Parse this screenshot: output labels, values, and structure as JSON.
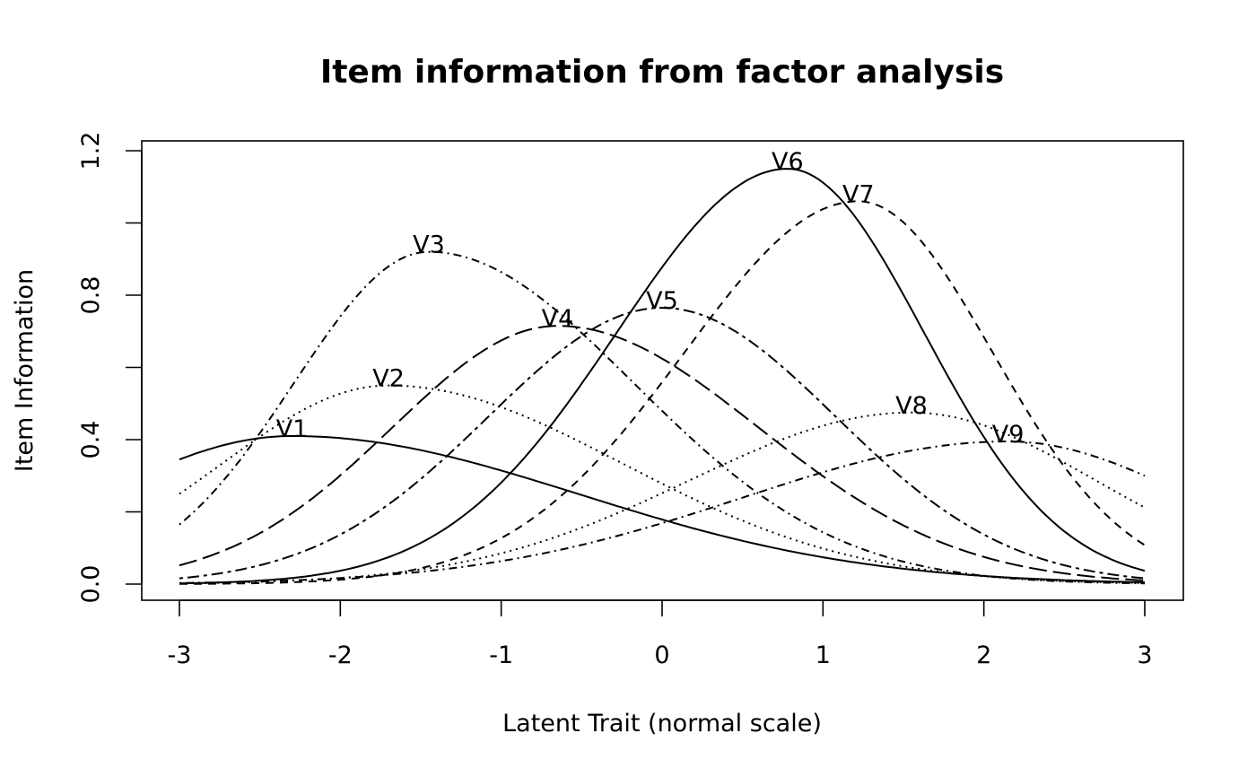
{
  "chart_data": {
    "type": "line",
    "title": "Item information from factor analysis",
    "xlabel": "Latent Trait (normal scale)",
    "ylabel": "Item Information",
    "xlim": [
      -3,
      3
    ],
    "ylim": [
      0,
      1.2
    ],
    "x_ticks": [
      -3,
      -2,
      -1,
      0,
      1,
      2,
      3
    ],
    "x_tick_labels": [
      "-3",
      "-2",
      "-1",
      "0",
      "1",
      "2",
      "3"
    ],
    "y_ticks": [
      0,
      0.2,
      0.4,
      0.6,
      0.8,
      1.0,
      1.2
    ],
    "y_tick_labels": [
      "0.0",
      "",
      "0.4",
      "",
      "0.8",
      "",
      "1.2"
    ],
    "grid": false,
    "legend": "none (curves labelled at their peaks)",
    "series": [
      {
        "name": "V1",
        "peak_x": -2.3,
        "peak_y": 0.41,
        "value_at_xmin": 0.345,
        "value_at_xmax": 0.005,
        "dash": "solid",
        "label_x": -2.3,
        "label_y": 0.41
      },
      {
        "name": "V2",
        "peak_x": -1.7,
        "peak_y": 0.55,
        "value_at_xmin": 0.25,
        "value_at_xmax": 0.003,
        "dash": "dotted",
        "label_x": -1.7,
        "label_y": 0.55
      },
      {
        "name": "V3",
        "peak_x": -1.45,
        "peak_y": 0.92,
        "value_at_xmin": 0.165,
        "value_at_xmax": 0.002,
        "dash": "dotdash",
        "label_x": -1.45,
        "label_y": 0.92
      },
      {
        "name": "V4",
        "peak_x": -0.65,
        "peak_y": 0.715,
        "value_at_xmin": 0.052,
        "value_at_xmax": 0.01,
        "dash": "longdash",
        "label_x": -0.65,
        "label_y": 0.715
      },
      {
        "name": "V5",
        "peak_x": 0.0,
        "peak_y": 0.765,
        "value_at_xmin": 0.016,
        "value_at_xmax": 0.016,
        "dash": "twodash",
        "label_x": 0.0,
        "label_y": 0.765
      },
      {
        "name": "V6",
        "peak_x": 0.78,
        "peak_y": 1.15,
        "value_at_xmin": 0.002,
        "value_at_xmax": 0.037,
        "dash": "solid",
        "label_x": 0.78,
        "label_y": 1.15
      },
      {
        "name": "V7",
        "peak_x": 1.22,
        "peak_y": 1.06,
        "value_at_xmin": 0.0005,
        "value_at_xmax": 0.108,
        "dash": "dashed",
        "label_x": 1.22,
        "label_y": 1.06
      },
      {
        "name": "V8",
        "peak_x": 1.55,
        "peak_y": 0.475,
        "value_at_xmin": 0.002,
        "value_at_xmax": 0.212,
        "dash": "dotted",
        "label_x": 1.55,
        "label_y": 0.475
      },
      {
        "name": "V9",
        "peak_x": 2.15,
        "peak_y": 0.395,
        "value_at_xmin": 0.003,
        "value_at_xmax": 0.3,
        "dash": "dotdash",
        "label_x": 2.15,
        "label_y": 0.395
      }
    ]
  }
}
